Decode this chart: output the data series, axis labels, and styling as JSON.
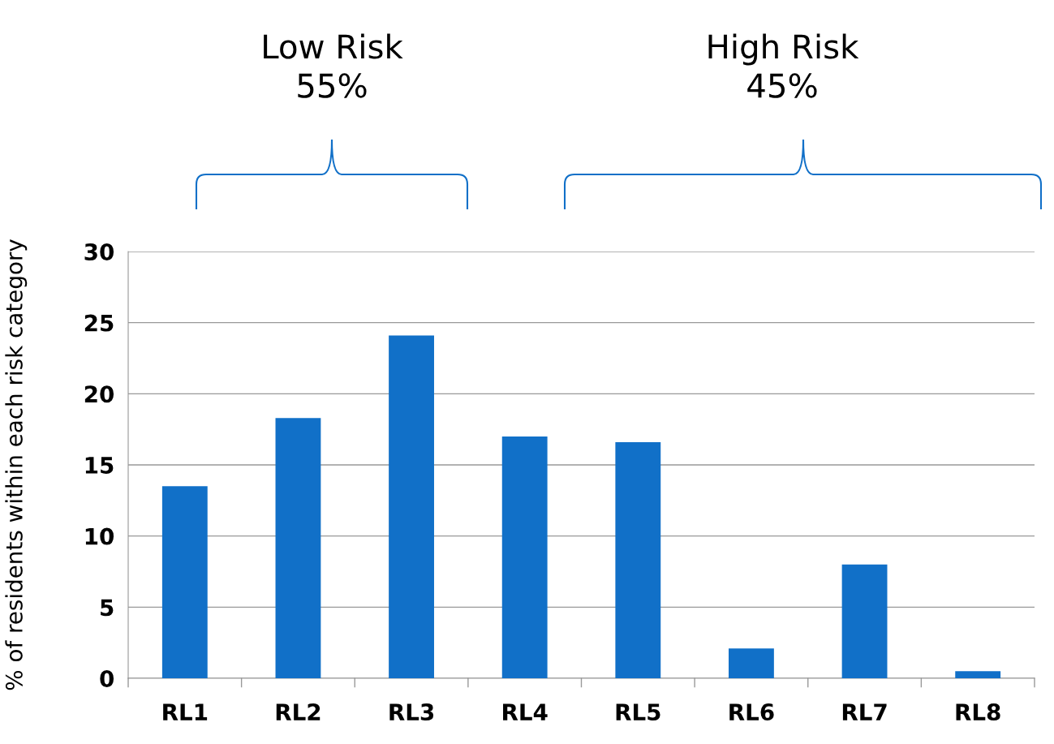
{
  "chart_data": {
    "type": "bar",
    "categories": [
      "RL1",
      "RL2",
      "RL3",
      "RL4",
      "RL5",
      "RL6",
      "RL7",
      "RL8"
    ],
    "values": [
      13.5,
      18.3,
      24.1,
      17.0,
      16.6,
      2.1,
      8.0,
      0.5
    ],
    "color": "#1170c8",
    "ylabel": "% of residents within each risk category",
    "ylim": [
      0,
      30
    ],
    "yticks": [
      0,
      5,
      10,
      15,
      20,
      25,
      30
    ],
    "grid": "y",
    "annotations": [
      "Low Risk\n55%",
      "High Risk\n45%"
    ]
  }
}
